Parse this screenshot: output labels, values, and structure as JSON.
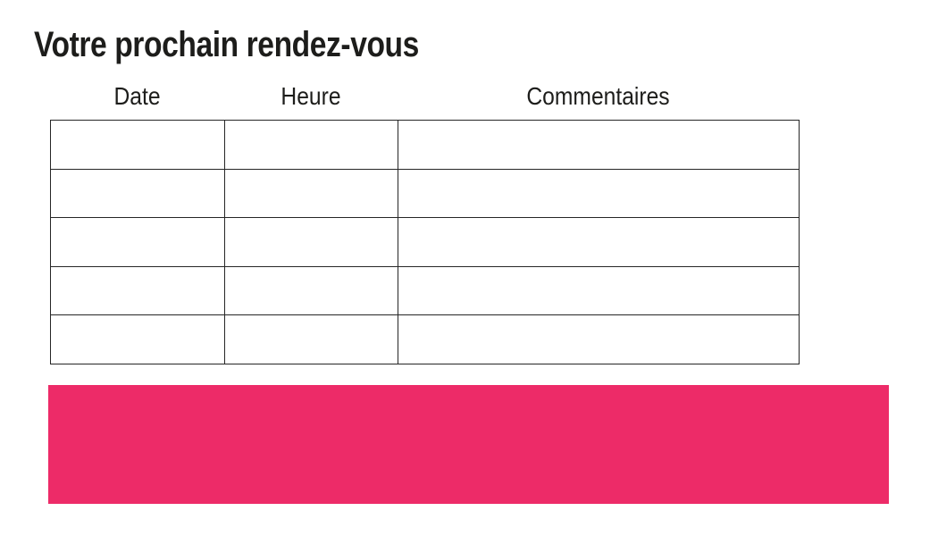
{
  "page": {
    "title": "Votre prochain rendez-vous"
  },
  "table": {
    "columns": [
      "Date",
      "Heure",
      "Commentaires"
    ],
    "rows": [
      [
        "",
        "",
        ""
      ],
      [
        "",
        "",
        ""
      ],
      [
        "",
        "",
        ""
      ],
      [
        "",
        "",
        ""
      ],
      [
        "",
        "",
        ""
      ]
    ]
  },
  "colors": {
    "accent_pink": "#ED2B68",
    "table_border": "#262626",
    "text": "#1d1d1b"
  }
}
